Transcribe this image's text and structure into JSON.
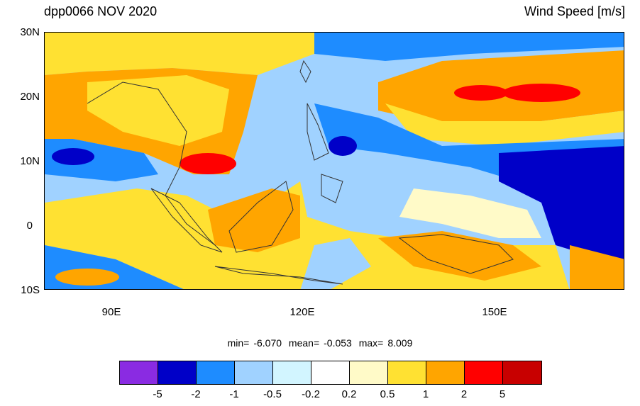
{
  "title_left": "dpp0066 NOV 2020",
  "title_right": "Wind Speed [m/s]",
  "y_axis_labels": [
    "30N",
    "20N",
    "10N",
    "0",
    "10S"
  ],
  "x_axis_labels": [
    "90E",
    "120E",
    "150E"
  ],
  "stats": {
    "min_label": "min=",
    "min_value": "-6.070",
    "mean_label": "mean=",
    "mean_value": "-0.053",
    "max_label": "max=",
    "max_value": "8.009"
  },
  "colorbar": {
    "colors": [
      "#8a2be2",
      "#0000c8",
      "#1e8cff",
      "#a0d2ff",
      "#d2f5ff",
      "#ffffff",
      "#fffac8",
      "#ffe132",
      "#ffa500",
      "#ff0000",
      "#c80000"
    ],
    "labels": [
      "-5",
      "-2",
      "-1",
      "-0.5",
      "-0.2",
      "0.2",
      "0.5",
      "1",
      "2",
      "5"
    ]
  }
}
